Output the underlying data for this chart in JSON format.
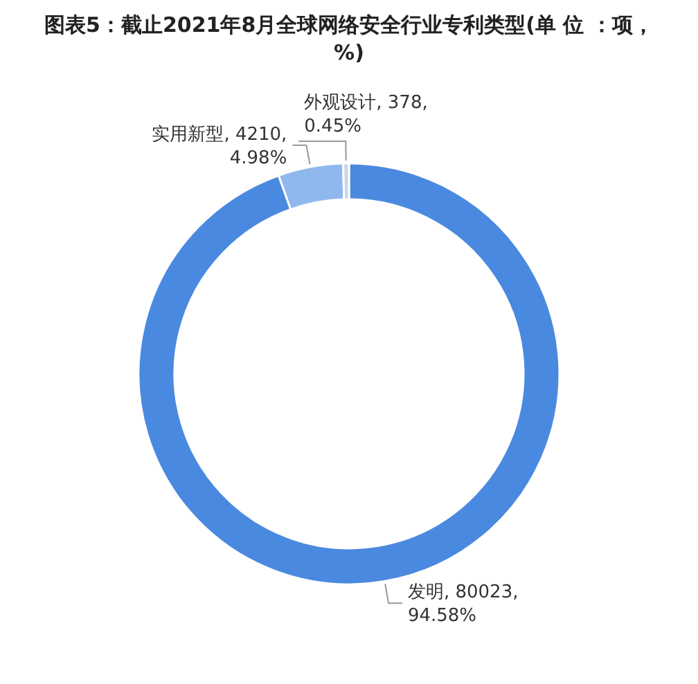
{
  "chart_data": {
    "type": "donut",
    "title": "图表5：截止2021年8月全球网络安全行业专利类型(单 位 ：项，%)",
    "categories": [
      "发明",
      "实用新型",
      "外观设计"
    ],
    "values": [
      80023,
      4210,
      378
    ],
    "colors": [
      "#4a89e0",
      "#8fb8ee",
      "#c9d6e8"
    ],
    "value_labels": [
      "80023, 94.58%",
      "4210, 4.98%",
      "378, 0.45%"
    ],
    "legend": false
  }
}
